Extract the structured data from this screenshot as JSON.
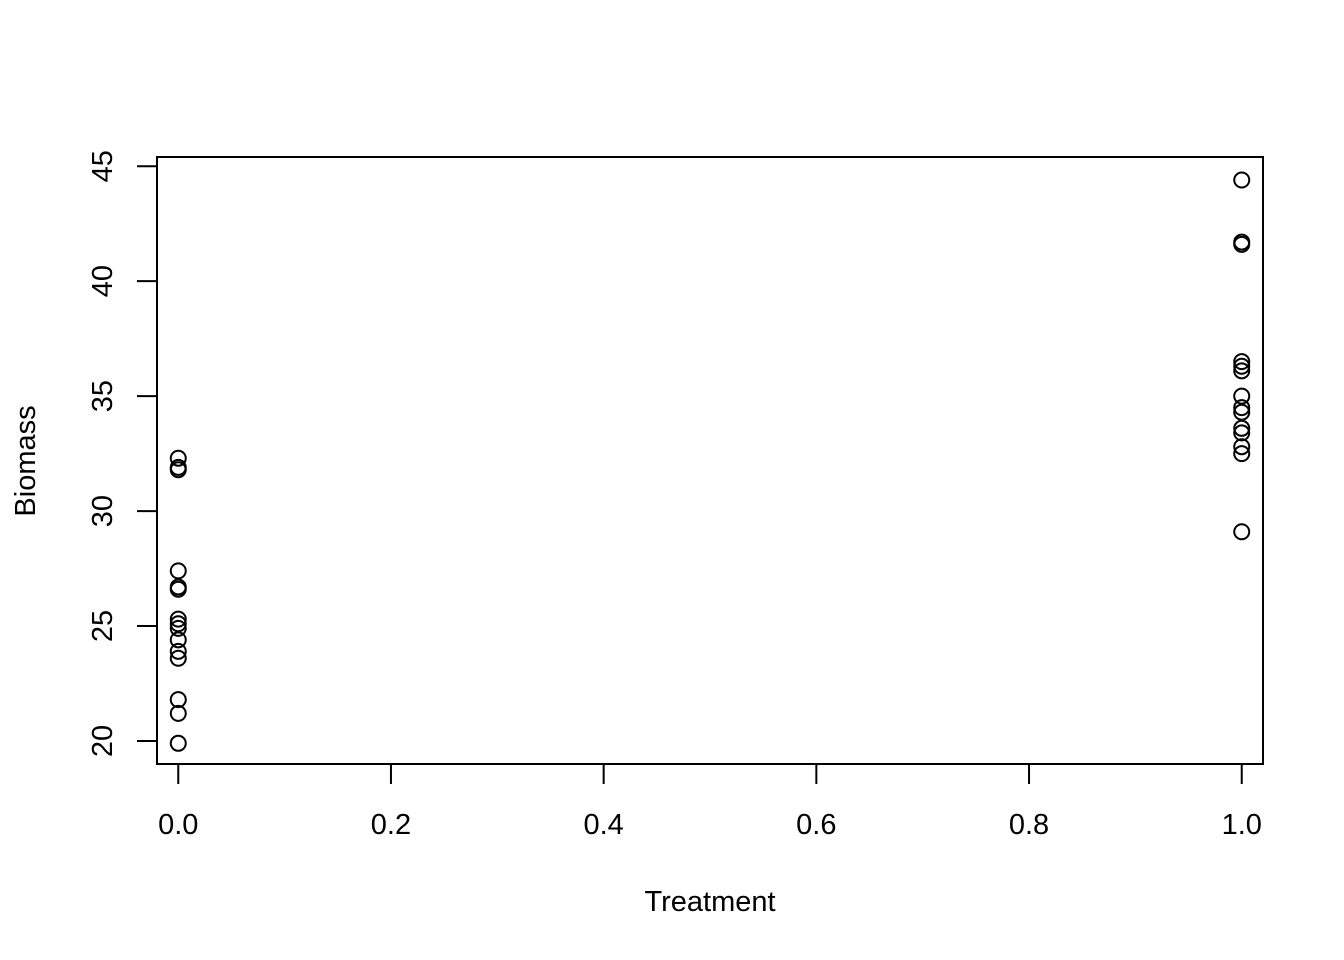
{
  "chart_data": {
    "type": "scatter",
    "title": "",
    "xlabel": "Treatment",
    "ylabel": "Biomass",
    "xlim": [
      -0.02,
      1.02
    ],
    "ylim": [
      19.0,
      45.4
    ],
    "xticks": [
      0.0,
      0.2,
      0.4,
      0.6,
      0.8,
      1.0
    ],
    "xtick_labels": [
      "0.0",
      "0.2",
      "0.4",
      "0.6",
      "0.8",
      "1.0"
    ],
    "yticks": [
      20,
      25,
      30,
      35,
      40,
      45
    ],
    "ytick_labels": [
      "20",
      "25",
      "30",
      "35",
      "40",
      "45"
    ],
    "grid": false,
    "marker": "open-circle",
    "points": [
      {
        "x": 0,
        "y": 32.3
      },
      {
        "x": 0,
        "y": 31.9
      },
      {
        "x": 0,
        "y": 31.8
      },
      {
        "x": 0,
        "y": 27.4
      },
      {
        "x": 0,
        "y": 26.7
      },
      {
        "x": 0,
        "y": 26.6
      },
      {
        "x": 0,
        "y": 25.3
      },
      {
        "x": 0,
        "y": 25.1
      },
      {
        "x": 0,
        "y": 24.9
      },
      {
        "x": 0,
        "y": 24.4
      },
      {
        "x": 0,
        "y": 23.9
      },
      {
        "x": 0,
        "y": 23.6
      },
      {
        "x": 0,
        "y": 21.8
      },
      {
        "x": 0,
        "y": 21.2
      },
      {
        "x": 0,
        "y": 19.9
      },
      {
        "x": 1,
        "y": 44.4
      },
      {
        "x": 1,
        "y": 41.7
      },
      {
        "x": 1,
        "y": 41.6
      },
      {
        "x": 1,
        "y": 36.5
      },
      {
        "x": 1,
        "y": 36.3
      },
      {
        "x": 1,
        "y": 36.1
      },
      {
        "x": 1,
        "y": 35.0
      },
      {
        "x": 1,
        "y": 34.5
      },
      {
        "x": 1,
        "y": 34.3
      },
      {
        "x": 1,
        "y": 33.6
      },
      {
        "x": 1,
        "y": 33.4
      },
      {
        "x": 1,
        "y": 32.8
      },
      {
        "x": 1,
        "y": 32.5
      },
      {
        "x": 1,
        "y": 29.1
      }
    ]
  }
}
